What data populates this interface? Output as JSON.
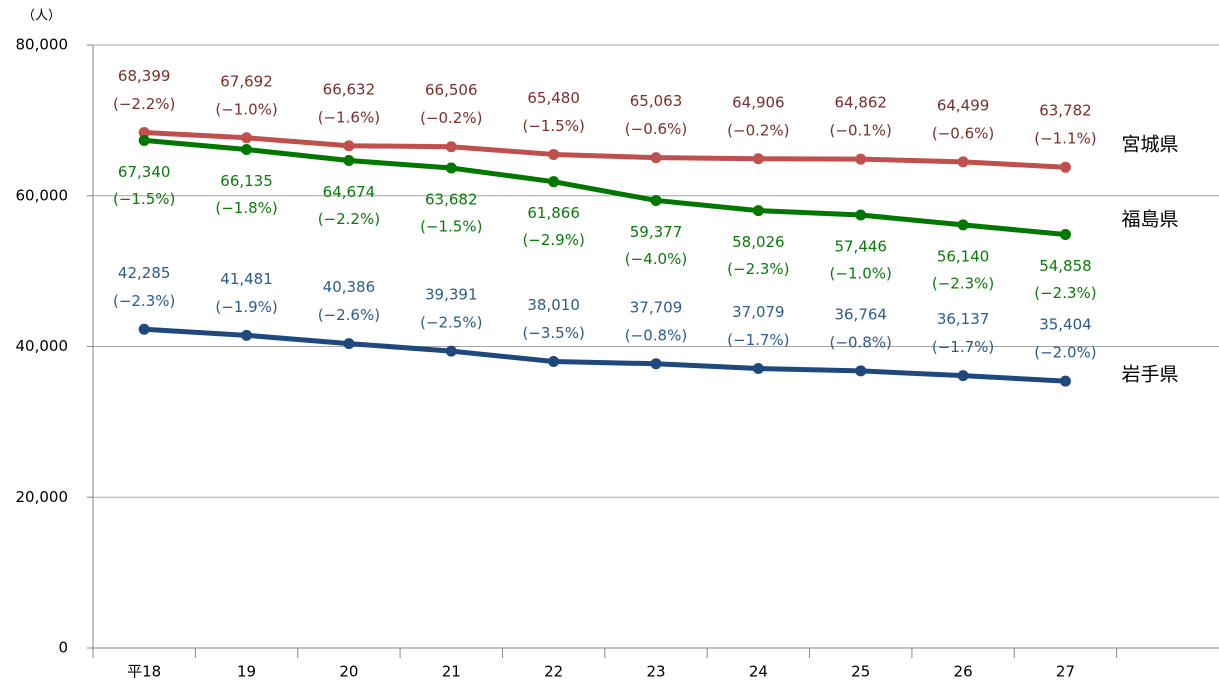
{
  "chart_data": {
    "type": "line",
    "unit_label": "（人）",
    "categories": [
      "平18",
      "19",
      "20",
      "21",
      "22",
      "23",
      "24",
      "25",
      "26",
      "27",
      null
    ],
    "ylim": [
      0,
      80000
    ],
    "yticks": [
      0,
      {
        "value": 20000,
        "label": "20,000"
      },
      {
        "value": 40000,
        "label": "40,000"
      },
      {
        "value": 60000,
        "label": "60,000"
      },
      {
        "value": 80000,
        "label": "80,000"
      }
    ],
    "grid": true,
    "series": [
      {
        "name": "宮城県",
        "color": "#c0504d",
        "label_color": "#7b2f2c",
        "label_side": "above",
        "values": [
          68399,
          67692,
          66632,
          66506,
          65480,
          65063,
          64906,
          64862,
          64499,
          63782,
          null
        ],
        "value_labels": [
          "68,399",
          "67,692",
          "66,632",
          "66,506",
          "65,480",
          "65,063",
          "64,906",
          "64,862",
          "64,499",
          "63,782",
          null
        ],
        "change_labels": [
          "(−2.2%)",
          "(−1.0%)",
          "(−1.6%)",
          "(−0.2%)",
          "(−1.5%)",
          "(−0.6%)",
          "(−0.2%)",
          "(−0.1%)",
          "(−0.6%)",
          "(−1.1%)",
          null
        ]
      },
      {
        "name": "福島県",
        "color": "#007800",
        "label_color": "#0b7a0b",
        "label_side": "below",
        "values": [
          67340,
          66135,
          64674,
          63682,
          61866,
          59377,
          58026,
          57446,
          56140,
          54858,
          null
        ],
        "value_labels": [
          "67,340",
          "66,135",
          "64,674",
          "63,682",
          "61,866",
          "59,377",
          "58,026",
          "57,446",
          "56,140",
          "54,858",
          null
        ],
        "change_labels": [
          "(−1.5%)",
          "(−1.8%)",
          "(−2.2%)",
          "(−1.5%)",
          "(−2.9%)",
          "(−4.0%)",
          "(−2.3%)",
          "(−1.0%)",
          "(−2.3%)",
          "(−2.3%)",
          null
        ]
      },
      {
        "name": "岩手県",
        "color": "#1f497d",
        "label_color": "#2e5b8c",
        "label_side": "above",
        "values": [
          42285,
          41481,
          40386,
          39391,
          38010,
          37709,
          37079,
          36764,
          36137,
          35404,
          null
        ],
        "value_labels": [
          "42,285",
          "41,481",
          "40,386",
          "39,391",
          "38,010",
          "37,709",
          "37,079",
          "36,764",
          "36,137",
          "35,404",
          null
        ],
        "change_labels": [
          "(−2.3%)",
          "(−1.9%)",
          "(−2.6%)",
          "(−2.5%)",
          "(−3.5%)",
          "(−0.8%)",
          "(−1.7%)",
          "(−0.8%)",
          "(−1.7%)",
          "(−2.0%)",
          null
        ]
      }
    ]
  }
}
